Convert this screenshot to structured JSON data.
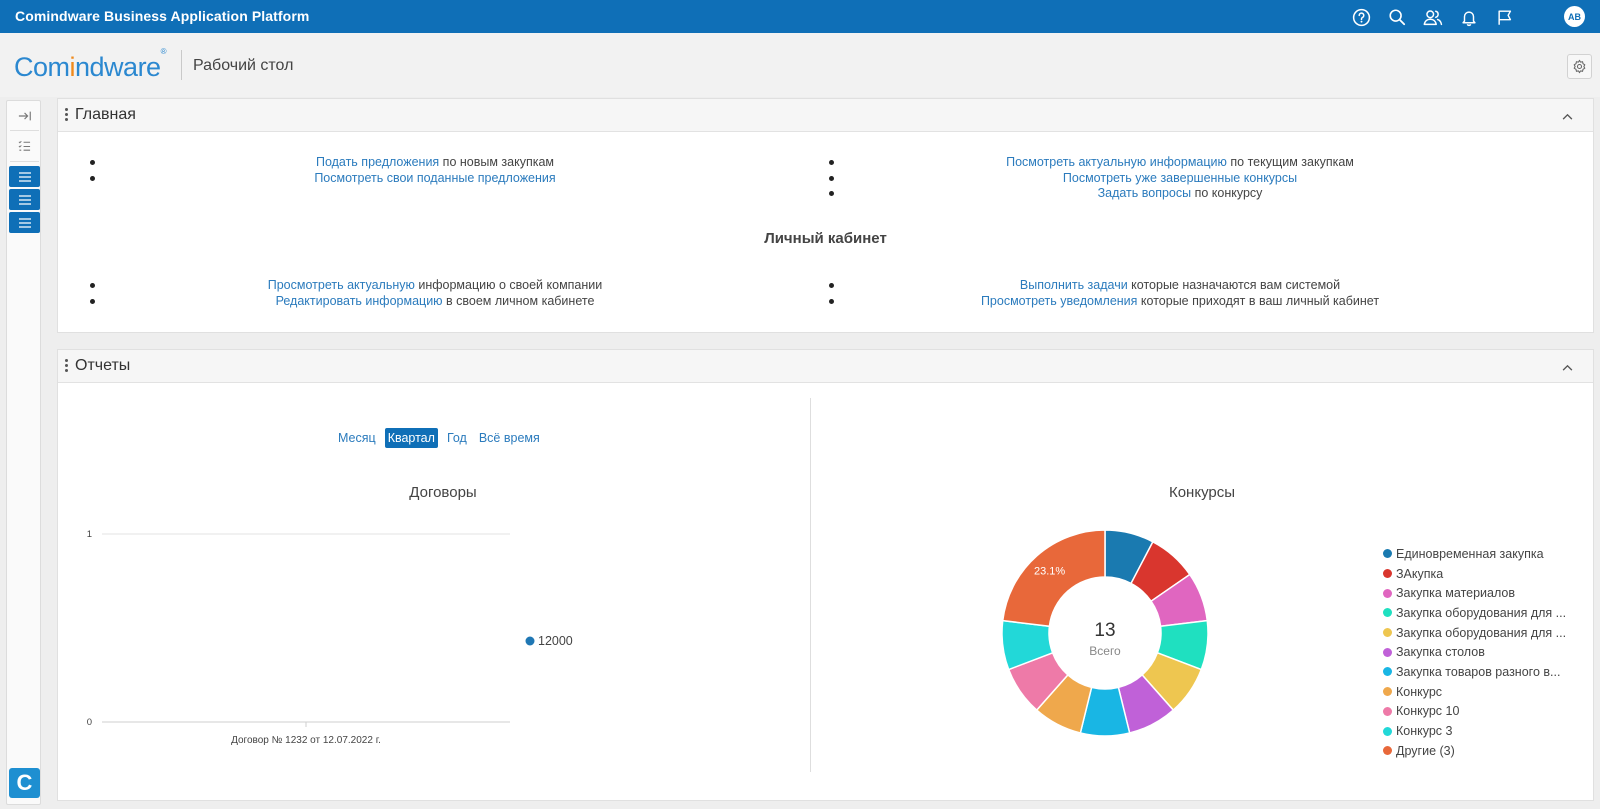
{
  "app": {
    "title": "Comindware Business Application Platform",
    "user_initials": "AB",
    "icons": [
      "help-icon",
      "search-icon",
      "users-icon",
      "bell-icon",
      "flag-icon"
    ]
  },
  "header": {
    "logo_part1": "Com",
    "logo_part2": "i",
    "logo_part3": "ndware",
    "logo_reg": "®",
    "page_title": "Рабочий стол"
  },
  "colors": {
    "topbar": "#0f6fb7",
    "link": "#2b7bbd",
    "logo_blue": "#2b88d0",
    "logo_orange": "#f08a1c"
  },
  "main_panel": {
    "title": "Главная",
    "left_items": [
      {
        "link": "Подать предложения",
        "text": " по новым закупкам"
      },
      {
        "link": "Посмотреть свои поданные предложения",
        "text": ""
      }
    ],
    "right_items": [
      {
        "link": "Посмотреть актуальную информацию",
        "text": " по текущим закупкам"
      },
      {
        "link": "Посмотреть уже завершенные конкурсы",
        "text": ""
      },
      {
        "link": "Задать вопросы",
        "text": " по конкурсу"
      }
    ],
    "cabinet_heading": "Личный кабинет",
    "cabinet_left": [
      {
        "link": "Просмотреть актуальную",
        "text": " информацию о своей компании"
      },
      {
        "link": "Редактировать информацию",
        "text": " в своем личном кабинете"
      }
    ],
    "cabinet_right": [
      {
        "link": "Выполнить задачи",
        "text": " которые назначаются вам системой"
      },
      {
        "link": "Просмотреть уведомления",
        "text": " которые приходят в ваш личный кабинет"
      }
    ]
  },
  "reports_panel": {
    "title": "Отчеты",
    "periods": [
      {
        "label": "Месяц",
        "active": false
      },
      {
        "label": "Квартал",
        "active": true
      },
      {
        "label": "Год",
        "active": false
      },
      {
        "label": "Всё время",
        "active": false
      }
    ]
  },
  "chart_data": [
    {
      "type": "line",
      "title": "Договоры",
      "categories": [
        "Договор № 1232 от 12.07.2022 г."
      ],
      "series": [
        {
          "name": "12000",
          "values": [
            0
          ],
          "color": "#1f77b4"
        }
      ],
      "ylim": [
        0,
        1
      ],
      "yticks": [
        "0",
        "1"
      ],
      "xlabel": "",
      "ylabel": "",
      "grid": true,
      "legend": "right"
    },
    {
      "type": "pie",
      "donut": true,
      "title": "Конкурсы",
      "total": "13",
      "total_label": "Всего",
      "highlight_label": "23.1%",
      "legend": "right",
      "slices": [
        {
          "label": "Единовременная закупка",
          "value": 1,
          "color": "#1a7ab0"
        },
        {
          "label": "ЗАкупка",
          "value": 1,
          "color": "#d9362e"
        },
        {
          "label": "Закупка материалов",
          "value": 1,
          "color": "#e066c0"
        },
        {
          "label": "Закупка оборудования для ...",
          "value": 1,
          "color": "#1fe0c0"
        },
        {
          "label": "Закупка оборудования для ...",
          "value": 1,
          "color": "#eec650"
        },
        {
          "label": "Закупка столов",
          "value": 1,
          "color": "#c061d8"
        },
        {
          "label": "Закупка товаров разного в...",
          "value": 1,
          "color": "#19b6e4"
        },
        {
          "label": "Конкурс",
          "value": 1,
          "color": "#efa84c"
        },
        {
          "label": "Конкурс 10",
          "value": 1,
          "color": "#ee7aa8"
        },
        {
          "label": "Конкурс 3",
          "value": 1,
          "color": "#22d8d8"
        },
        {
          "label": "Другие (3)",
          "value": 3,
          "color": "#e8683a"
        }
      ]
    }
  ]
}
